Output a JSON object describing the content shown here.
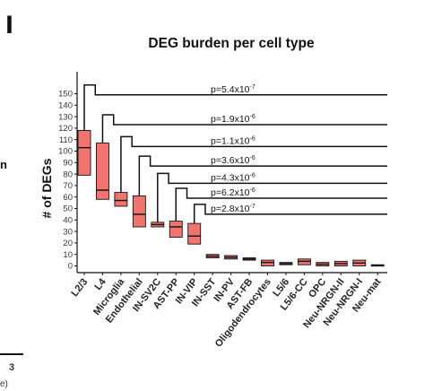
{
  "panel": {
    "letter": "l",
    "left_fragment_top": "n",
    "left_fragment_number": "3",
    "left_fragment_bottom": "e)"
  },
  "chart_data": {
    "type": "box",
    "title": "DEG burden per cell type",
    "xlabel": "",
    "ylabel": "# of DEGs",
    "ylim": [
      -5,
      155
    ],
    "yticks": [
      0,
      10,
      20,
      30,
      40,
      50,
      60,
      70,
      80,
      90,
      100,
      110,
      120,
      130,
      140,
      150
    ],
    "grid": false,
    "legend": "none",
    "box_color": "#f07470",
    "categories": [
      "L2/3",
      "L4",
      "Microglia",
      "Endothelial",
      "IN-SV2C",
      "AST-PP",
      "IN-VIP",
      "IN-SST",
      "IN-PV",
      "AST-FB",
      "Oligodendrocytes",
      "L5/6",
      "L5/6-CC",
      "OPC",
      "Neu-NRGN-II",
      "Neu-NRGN-I",
      "Neu-mat"
    ],
    "boxes": [
      {
        "q1": 79,
        "median": 103,
        "q3": 118
      },
      {
        "q1": 58,
        "median": 66,
        "q3": 107
      },
      {
        "q1": 52,
        "median": 57,
        "q3": 64
      },
      {
        "q1": 34,
        "median": 45,
        "q3": 61
      },
      {
        "q1": 34,
        "median": 36,
        "q3": 38
      },
      {
        "q1": 25,
        "median": 34,
        "q3": 39
      },
      {
        "q1": 19,
        "median": 26,
        "q3": 37
      },
      {
        "q1": 7,
        "median": 8.5,
        "q3": 10
      },
      {
        "q1": 6,
        "median": 7.5,
        "q3": 9
      },
      {
        "q1": 5,
        "median": 6,
        "q3": 7
      },
      {
        "q1": 0,
        "median": 3,
        "q3": 5
      },
      {
        "q1": 1,
        "median": 2,
        "q3": 3
      },
      {
        "q1": 1,
        "median": 4,
        "q3": 6
      },
      {
        "q1": 0,
        "median": 1.5,
        "q3": 3
      },
      {
        "q1": 0,
        "median": 2,
        "q3": 4
      },
      {
        "q1": 0,
        "median": 2.5,
        "q3": 5
      },
      {
        "q1": 0,
        "median": 0.5,
        "q3": 1
      }
    ],
    "comparisons": [
      {
        "from": "L2/3",
        "label": "p=5.4x10",
        "exp": "-7",
        "y": 149
      },
      {
        "from": "L4",
        "label": "p=1.9x10",
        "exp": "-6",
        "y": 123
      },
      {
        "from": "Microglia",
        "label": "p=1.1x10",
        "exp": "-6",
        "y": 104
      },
      {
        "from": "Endothelial",
        "label": "p=3.6x10",
        "exp": "-6",
        "y": 87
      },
      {
        "from": "IN-SV2C",
        "label": "p=4.3x10",
        "exp": "-6",
        "y": 72
      },
      {
        "from": "AST-PP",
        "label": "p=6.2x10",
        "exp": "-6",
        "y": 59
      },
      {
        "from": "IN-VIP",
        "label": "p=2.8x10",
        "exp": "-7",
        "y": 45
      }
    ]
  }
}
